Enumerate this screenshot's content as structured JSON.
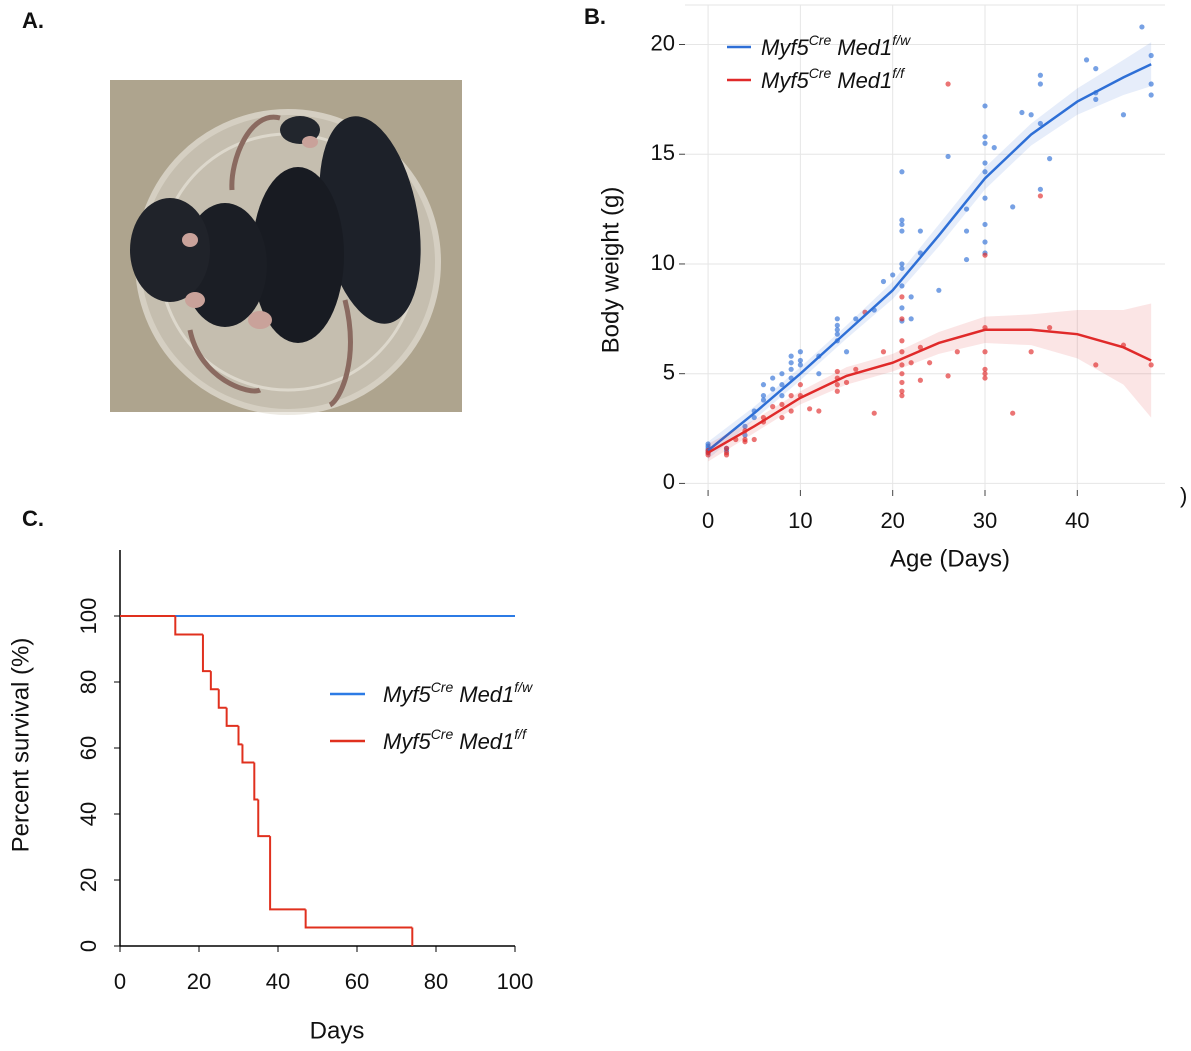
{
  "panel_labels": [
    "A.",
    "B.",
    "C."
  ],
  "chart_data": [
    {
      "type": "scatter",
      "xlabel": "Age (Days)",
      "ylabel": "Body weight (g)",
      "annotation": ")",
      "xlim": [
        -2.5,
        49.5
      ],
      "ylim": [
        -0.3,
        21.8
      ],
      "xticks": [
        0,
        10,
        20,
        30,
        40
      ],
      "yticks": [
        0,
        5,
        10,
        15,
        20
      ],
      "grid": true,
      "series": [
        {
          "name": [
            "Myf5",
            "Cre",
            "Med1",
            "f/w"
          ],
          "color": "#2e6fd6",
          "x": [
            0,
            0,
            0,
            0,
            0,
            2,
            2,
            4,
            4,
            5,
            5,
            6,
            6,
            6,
            7,
            7,
            8,
            8,
            8,
            9,
            9,
            9,
            9,
            10,
            10,
            10,
            12,
            12,
            14,
            14,
            14,
            14,
            14,
            15,
            16,
            18,
            19,
            20,
            21,
            21,
            21,
            21,
            21,
            21,
            21,
            21,
            21,
            22,
            22,
            23,
            23,
            25,
            26,
            28,
            28,
            28,
            30,
            30,
            30,
            30,
            30,
            30,
            30,
            30,
            30,
            31,
            33,
            34,
            35,
            36,
            36,
            36,
            36,
            37,
            41,
            42,
            42,
            42,
            45,
            47,
            48,
            48,
            48
          ],
          "values": [
            1.5,
            1.6,
            1.7,
            1.4,
            1.8,
            1.6,
            1.5,
            2.2,
            2.6,
            3.0,
            3.3,
            4.0,
            4.5,
            3.8,
            4.8,
            4.3,
            4.5,
            5.0,
            4.0,
            5.5,
            5.8,
            4.8,
            5.2,
            6.0,
            5.4,
            5.6,
            5.0,
            5.8,
            7.5,
            7.2,
            6.5,
            7.0,
            6.8,
            6.0,
            7.5,
            7.9,
            9.2,
            9.5,
            14.2,
            12.0,
            11.8,
            11.5,
            10.0,
            9.8,
            9.0,
            8.0,
            7.4,
            8.5,
            7.5,
            11.5,
            10.5,
            8.8,
            14.9,
            12.5,
            10.2,
            11.5,
            17.2,
            15.8,
            15.5,
            14.6,
            14.2,
            13.0,
            11.8,
            11.0,
            10.5,
            15.3,
            12.6,
            16.9,
            16.8,
            18.6,
            18.2,
            16.4,
            13.4,
            14.8,
            19.3,
            18.9,
            17.8,
            17.5,
            16.8,
            20.8,
            19.5,
            17.7,
            18.2
          ],
          "fit": {
            "x": [
              0,
              5,
              10,
              15,
              20,
              25,
              30,
              35,
              40,
              45,
              48
            ],
            "values": [
              1.5,
              3.2,
              5.0,
              6.9,
              8.8,
              11.3,
              13.9,
              15.9,
              17.4,
              18.5,
              19.1
            ],
            "lower": [
              1.1,
              2.9,
              4.7,
              6.6,
              8.4,
              10.8,
              13.4,
              15.4,
              16.8,
              17.7,
              18.1
            ],
            "upper": [
              1.9,
              3.5,
              5.3,
              7.2,
              9.2,
              11.8,
              14.4,
              16.4,
              18.0,
              19.3,
              20.1
            ]
          }
        },
        {
          "name": [
            "Myf5",
            "Cre",
            "Med1",
            "f/f"
          ],
          "color": "#e02a2a",
          "x": [
            0,
            0,
            0,
            2,
            2,
            2,
            3,
            4,
            4,
            4,
            5,
            6,
            6,
            7,
            8,
            8,
            9,
            9,
            10,
            10,
            11,
            12,
            14,
            14,
            14,
            14,
            15,
            16,
            17,
            18,
            19,
            21,
            21,
            21,
            21,
            21,
            21,
            21,
            21,
            21,
            22,
            23,
            23,
            24,
            26,
            26,
            27,
            30,
            30,
            30,
            30,
            30,
            30,
            33,
            35,
            36,
            37,
            42,
            45,
            48
          ],
          "values": [
            1.4,
            1.3,
            1.5,
            1.6,
            1.3,
            1.4,
            2.0,
            2.4,
            1.9,
            2.0,
            2.0,
            3.0,
            2.8,
            3.5,
            3.6,
            3.0,
            4.0,
            3.3,
            4.5,
            4.0,
            3.4,
            3.3,
            5.1,
            4.8,
            4.5,
            4.2,
            4.6,
            5.2,
            7.8,
            3.2,
            6.0,
            8.5,
            7.5,
            6.5,
            6.0,
            5.4,
            5.0,
            4.6,
            4.2,
            4.0,
            5.5,
            6.2,
            4.7,
            5.5,
            18.2,
            4.9,
            6.0,
            10.4,
            7.1,
            6.0,
            5.2,
            5.0,
            4.8,
            3.2,
            6.0,
            13.1,
            7.1,
            5.4,
            6.3,
            5.4
          ],
          "fit": {
            "x": [
              0,
              5,
              10,
              15,
              20,
              25,
              30,
              35,
              40,
              45,
              48
            ],
            "values": [
              1.4,
              2.6,
              3.9,
              4.9,
              5.5,
              6.4,
              7.0,
              7.0,
              6.8,
              6.2,
              5.6
            ],
            "lower": [
              1.0,
              2.3,
              3.6,
              4.5,
              5.1,
              5.9,
              6.4,
              6.3,
              5.7,
              4.5,
              3.0
            ],
            "upper": [
              1.8,
              2.9,
              4.2,
              5.3,
              5.9,
              6.9,
              7.6,
              7.7,
              7.9,
              7.9,
              8.2
            ]
          }
        }
      ]
    },
    {
      "type": "step",
      "xlabel": "Days",
      "ylabel": "Percent survival (%)",
      "xlim": [
        0,
        100
      ],
      "ylim": [
        0,
        120
      ],
      "xticks": [
        0,
        20,
        40,
        60,
        80,
        100
      ],
      "yticks": [
        0,
        20,
        40,
        60,
        80,
        100
      ],
      "series": [
        {
          "name": [
            "Myf5",
            "Cre",
            "Med1",
            "f/w"
          ],
          "color": "#2c7be5",
          "x": [
            0,
            100
          ],
          "values": [
            100,
            100
          ]
        },
        {
          "name": [
            "Myf5",
            "Cre",
            "Med1",
            "f/f"
          ],
          "color": "#e0301e",
          "x": [
            0,
            14,
            21,
            23,
            25,
            27,
            30,
            31,
            34,
            35,
            38,
            47,
            74
          ],
          "values": [
            100,
            94.4,
            83.3,
            77.8,
            72.2,
            66.7,
            61.1,
            55.6,
            44.4,
            33.3,
            11.1,
            5.6,
            0
          ]
        }
      ]
    }
  ]
}
